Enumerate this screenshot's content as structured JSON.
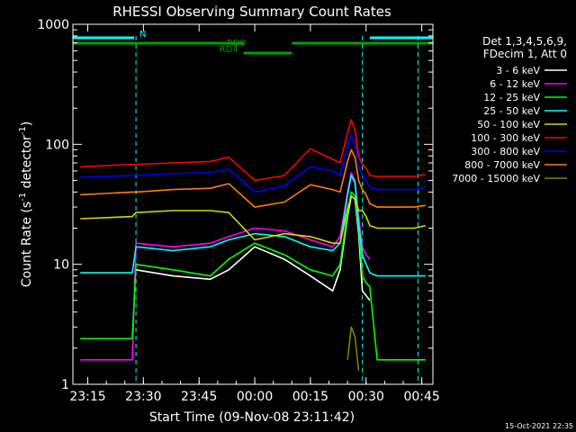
{
  "chart_data": {
    "type": "line",
    "title": "RHESSI Observing Summary Count Rates",
    "xlabel": "Start Time (09-Nov-08 23:11:42)",
    "ylabel": "Count Rate (s",
    "ylabel_sup1": "-1",
    "ylabel_mid": " detector",
    "ylabel_sup2": "-1",
    "ylabel_end": ")",
    "y_scale": "log",
    "ylim": [
      1,
      1000
    ],
    "xlim_minutes": [
      -2,
      95
    ],
    "x_ticks": [
      {
        "label": "23:15",
        "t": 2
      },
      {
        "label": "23:30",
        "t": 17
      },
      {
        "label": "23:45",
        "t": 32
      },
      {
        "label": "00:00",
        "t": 47
      },
      {
        "label": "00:15",
        "t": 62
      },
      {
        "label": "00:30",
        "t": 77
      },
      {
        "label": "00:45",
        "t": 92
      }
    ],
    "y_ticks": [
      {
        "label": "1",
        "v": 1
      },
      {
        "label": "10",
        "v": 10
      },
      {
        "label": "100",
        "v": 100
      },
      {
        "label": "1000",
        "v": 1000
      }
    ],
    "legend": {
      "placement": "right",
      "header": [
        "Det 1,3,4,5,6,9,",
        "FDecim 1, Att 0"
      ],
      "entries": [
        {
          "label": "3 - 6 keV",
          "color": "#ffffff"
        },
        {
          "label": "6 - 12 keV",
          "color": "#ff00ff"
        },
        {
          "label": "12 - 25 keV",
          "color": "#00ff00"
        },
        {
          "label": "25 - 50 keV",
          "color": "#00ffff"
        },
        {
          "label": "50 - 100 keV",
          "color": "#d7d700"
        },
        {
          "label": "100 - 300 keV",
          "color": "#ff0000"
        },
        {
          "label": "300 - 800 keV",
          "color": "#0000ff"
        },
        {
          "label": "800 - 7000 keV",
          "color": "#ff7f00"
        },
        {
          "label": "7000 - 15000 keV",
          "color": "#7f7f00"
        }
      ]
    },
    "flags": [
      {
        "label": "N",
        "color": "#00ffff",
        "segments": [
          [
            -2,
            14.5
          ],
          [
            78,
            95
          ]
        ]
      },
      {
        "label": "RD0",
        "color": "#00a000",
        "segments": [
          [
            -2,
            44
          ],
          [
            57,
            95
          ]
        ]
      },
      {
        "label": "RD4",
        "color": "#00a000",
        "segments": [
          [
            44,
            57
          ]
        ]
      }
    ],
    "night_boundaries_min": [
      15,
      76,
      91
    ],
    "series": [
      {
        "name": "3 - 6 keV",
        "color": "#ffffff",
        "x": [
          0,
          14,
          15,
          25,
          35,
          40,
          47,
          55,
          62,
          68,
          70,
          72,
          73,
          74,
          75,
          76,
          77,
          78,
          80,
          90,
          93
        ],
        "y": [
          null,
          null,
          9,
          8,
          7.5,
          9,
          14,
          11,
          8,
          6,
          9,
          25,
          37,
          35,
          18,
          6,
          5.5,
          5,
          null,
          null,
          null
        ]
      },
      {
        "name": "6 - 12 keV",
        "color": "#ff00ff",
        "x": [
          0,
          14,
          15,
          25,
          35,
          40,
          47,
          55,
          62,
          68,
          70,
          72,
          73,
          74,
          75,
          76,
          77,
          78,
          80,
          90,
          93
        ],
        "y": [
          1.6,
          1.6,
          15,
          14,
          15,
          17,
          20,
          19,
          16,
          14,
          17,
          40,
          58,
          50,
          25,
          14,
          12,
          11,
          null,
          null,
          null
        ]
      },
      {
        "name": "12 - 25 keV",
        "color": "#00ff00",
        "x": [
          0,
          14,
          15,
          25,
          35,
          40,
          47,
          55,
          62,
          68,
          70,
          72,
          73,
          74,
          75,
          76,
          77,
          78,
          80,
          90,
          93
        ],
        "y": [
          2.4,
          2.4,
          10,
          9,
          8,
          11,
          15,
          12,
          9,
          8,
          10,
          27,
          40,
          37,
          20,
          8,
          7,
          6.5,
          1.6,
          1.6,
          1.6
        ]
      },
      {
        "name": "25 - 50 keV",
        "color": "#00ffff",
        "x": [
          0,
          14,
          15,
          25,
          35,
          40,
          47,
          55,
          62,
          68,
          70,
          72,
          73,
          74,
          75,
          76,
          77,
          78,
          80,
          90,
          93
        ],
        "y": [
          8.5,
          8.5,
          14,
          13,
          14,
          16,
          18,
          17,
          14,
          13,
          15,
          38,
          55,
          48,
          22,
          12,
          10,
          8.5,
          8,
          8,
          8
        ]
      },
      {
        "name": "50 - 100 keV",
        "color": "#d7d700",
        "x": [
          0,
          14,
          15,
          25,
          35,
          40,
          47,
          55,
          62,
          68,
          70,
          72,
          73,
          74,
          75,
          76,
          77,
          78,
          80,
          90,
          93
        ],
        "y": [
          24,
          25,
          27,
          28,
          28,
          27,
          16,
          18,
          17,
          15,
          15,
          29,
          37,
          35,
          28,
          28,
          25,
          21,
          20,
          20,
          21
        ]
      },
      {
        "name": "100 - 300 keV",
        "color": "#ff0000",
        "x": [
          0,
          14,
          15,
          25,
          35,
          40,
          47,
          55,
          62,
          68,
          70,
          72,
          73,
          74,
          75,
          76,
          77,
          78,
          80,
          90,
          93
        ],
        "y": [
          65,
          68,
          68,
          70,
          72,
          78,
          50,
          55,
          92,
          75,
          70,
          125,
          160,
          130,
          80,
          68,
          63,
          55,
          54,
          54,
          56
        ]
      },
      {
        "name": "300 - 800 keV",
        "color": "#0000ff",
        "x": [
          0,
          14,
          15,
          25,
          35,
          40,
          47,
          55,
          62,
          68,
          70,
          72,
          73,
          74,
          75,
          76,
          77,
          78,
          80,
          90,
          93
        ],
        "y": [
          53,
          55,
          55,
          57,
          58,
          62,
          40,
          45,
          65,
          60,
          55,
          95,
          120,
          100,
          65,
          55,
          50,
          44,
          42,
          42,
          44
        ]
      },
      {
        "name": "800 - 7000 keV",
        "color": "#ff7f00",
        "x": [
          0,
          14,
          15,
          25,
          35,
          40,
          47,
          55,
          62,
          68,
          70,
          72,
          73,
          74,
          75,
          76,
          77,
          78,
          80,
          90,
          93
        ],
        "y": [
          38,
          40,
          40,
          42,
          43,
          47,
          30,
          33,
          46,
          42,
          40,
          72,
          90,
          78,
          50,
          42,
          38,
          32,
          30,
          30,
          31
        ]
      },
      {
        "name": "7000 - 15000 keV",
        "color": "#7f7f00",
        "x": [
          0,
          14,
          15,
          25,
          35,
          40,
          47,
          55,
          62,
          68,
          70,
          72,
          73,
          74,
          75,
          76,
          77,
          78,
          80,
          90,
          93
        ],
        "y": [
          null,
          null,
          null,
          null,
          null,
          null,
          null,
          null,
          null,
          null,
          null,
          1.6,
          3,
          2.5,
          1.3,
          null,
          null,
          null,
          null,
          null,
          null
        ]
      }
    ]
  },
  "timestamp": "15-Oct-2021 22:35"
}
